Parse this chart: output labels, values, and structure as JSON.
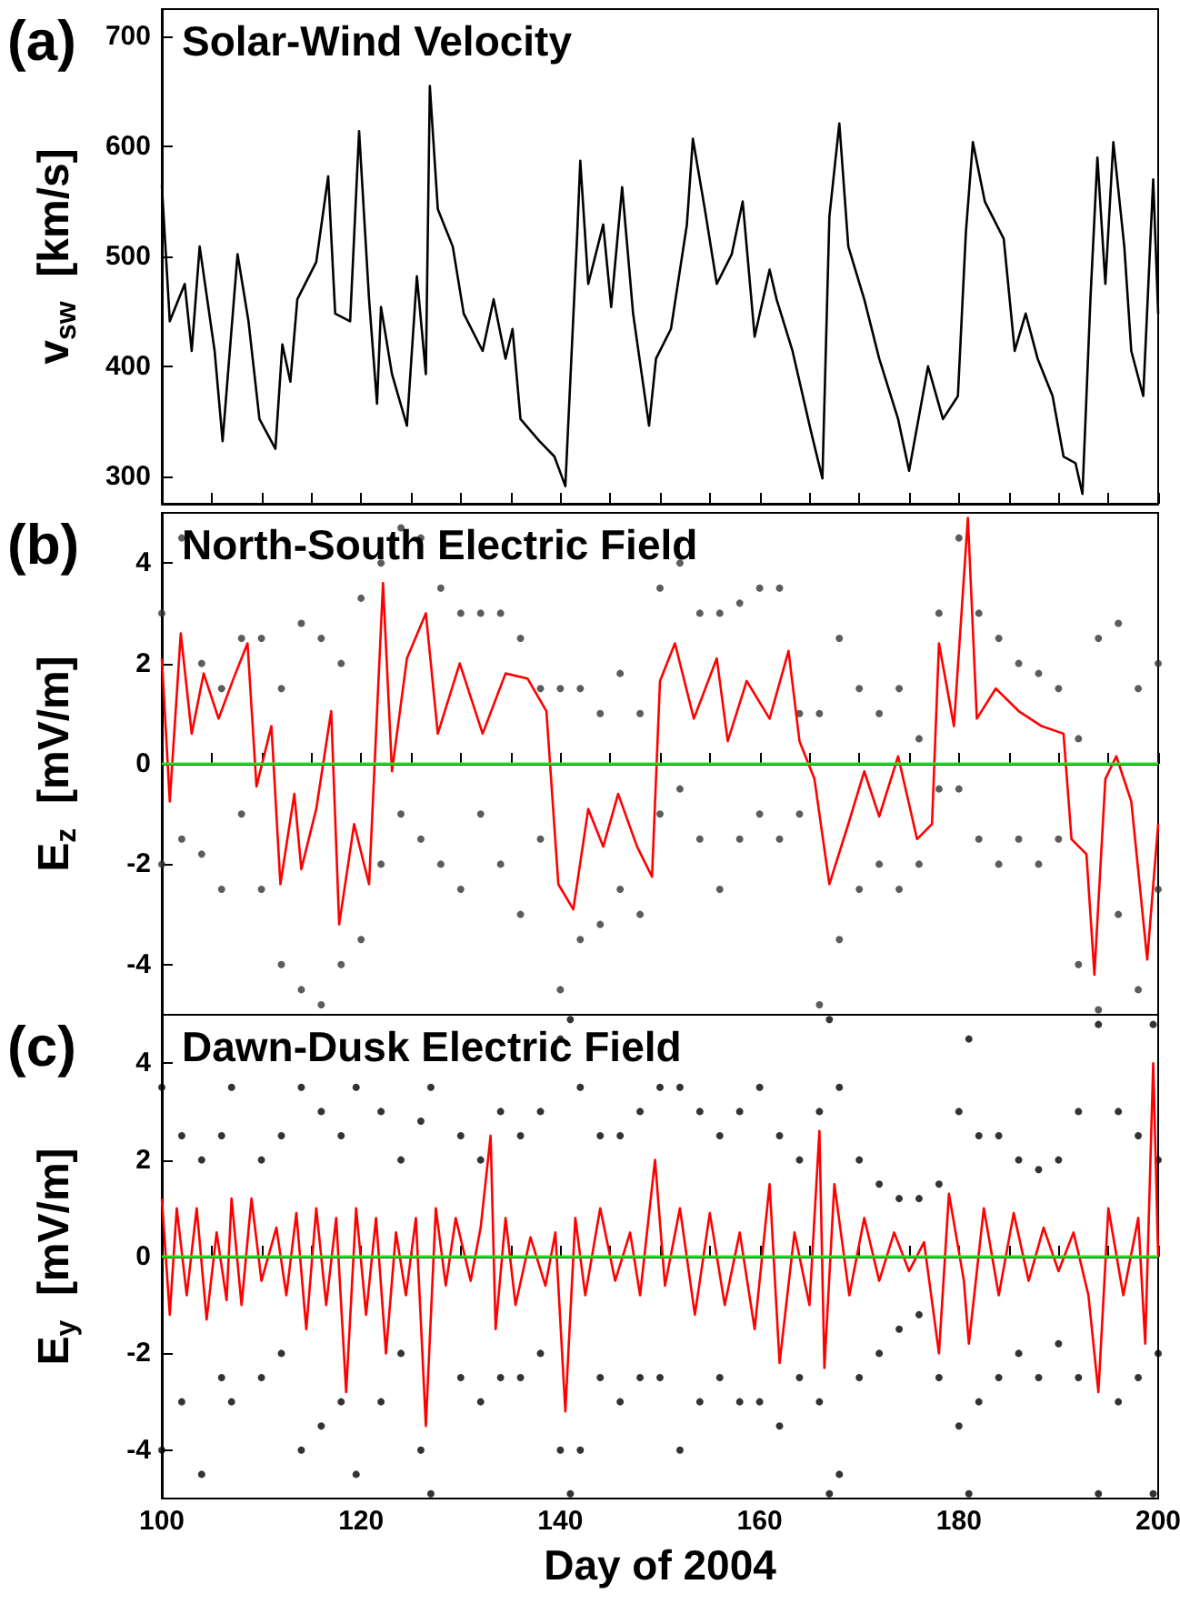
{
  "chart_data": [
    {
      "type": "line",
      "title": "Solar-Wind Velocity",
      "ylabel": "v$_{sw}$  [km/s]",
      "annotations": [
        "(a)"
      ],
      "tick_labels": "y",
      "xlim": [
        100,
        200
      ],
      "xticks": [
        100,
        {
          "value": 105,
          "label": null
        },
        {
          "value": 110,
          "label": null
        },
        {
          "value": 115,
          "label": null
        },
        120,
        {
          "value": 125,
          "label": null
        },
        {
          "value": 130,
          "label": null
        },
        {
          "value": 135,
          "label": null
        },
        140,
        {
          "value": 145,
          "label": null
        },
        {
          "value": 150,
          "label": null
        },
        {
          "value": 155,
          "label": null
        },
        160,
        {
          "value": 165,
          "label": null
        },
        {
          "value": 170,
          "label": null
        },
        {
          "value": 175,
          "label": null
        },
        180,
        {
          "value": 185,
          "label": null
        },
        {
          "value": 190,
          "label": null
        },
        {
          "value": 195,
          "label": null
        },
        200
      ],
      "ylim": [
        275,
        725
      ],
      "yticks": [
        300,
        400,
        500,
        600,
        700
      ],
      "series": [
        {
          "color": "#000000",
          "marker": "none",
          "x": [
            100,
            100.8,
            102.3,
            103,
            103.8,
            105.3,
            106.1,
            107.6,
            108.7,
            109.8,
            111.4,
            112.1,
            112.9,
            113.6,
            115.5,
            116.7,
            117.4,
            118.9,
            119.8,
            120.8,
            121.6,
            122,
            123.1,
            124.6,
            125.6,
            126.5,
            126.9,
            127.7,
            129.2,
            130.3,
            132.2,
            133.3,
            134.5,
            135.2,
            136,
            137.9,
            139.4,
            140.5,
            141.7,
            142,
            142.8,
            144.3,
            145.1,
            146.2,
            147.3,
            148.9,
            149.6,
            151.1,
            152.7,
            153.3,
            154.5,
            155.7,
            157.2,
            158.3,
            159.5,
            161,
            161.7,
            163.3,
            165.2,
            166.3,
            167,
            168,
            168.9,
            170.5,
            172,
            173.9,
            175,
            176.9,
            178.4,
            179.9,
            180.7,
            181.4,
            182.6,
            184.5,
            185.6,
            186.7,
            187.9,
            189.4,
            190.5,
            191.7,
            192.4,
            193.2,
            193.9,
            194.7,
            195.5,
            196.6,
            197.3,
            198.5,
            199.5,
            200
          ],
          "values": [
            565,
            441,
            475,
            414,
            509,
            414,
            332,
            502,
            441,
            352,
            325,
            420,
            386,
            461,
            495,
            573,
            448,
            441,
            614,
            461,
            366,
            454,
            393,
            346,
            482,
            393,
            655,
            543,
            509,
            448,
            414,
            461,
            407,
            434,
            352,
            332,
            318,
            291,
            522,
            587,
            475,
            529,
            454,
            563,
            448,
            346,
            407,
            434,
            529,
            607,
            543,
            475,
            502,
            550,
            427,
            488,
            461,
            414,
            339,
            298,
            536,
            621,
            509,
            461,
            407,
            352,
            305,
            400,
            352,
            373,
            522,
            604,
            550,
            516,
            414,
            448,
            407,
            373,
            318,
            312,
            284,
            461,
            590,
            475,
            604,
            509,
            414,
            373,
            570,
            448
          ]
        }
      ]
    },
    {
      "type": "line",
      "title": "North-South Electric Field",
      "ylabel": "E$_{z}$  [mV/m]",
      "annotations": [
        "(b)"
      ],
      "tick_labels": "y",
      "xlim": [
        100,
        200
      ],
      "xticks": [
        100,
        {
          "value": 105,
          "label": null
        },
        {
          "value": 110,
          "label": null
        },
        {
          "value": 115,
          "label": null
        },
        120,
        {
          "value": 125,
          "label": null
        },
        {
          "value": 130,
          "label": null
        },
        {
          "value": 135,
          "label": null
        },
        140,
        {
          "value": 145,
          "label": null
        },
        {
          "value": 150,
          "label": null
        },
        {
          "value": 155,
          "label": null
        },
        160,
        {
          "value": 165,
          "label": null
        },
        {
          "value": 170,
          "label": null
        },
        {
          "value": 175,
          "label": null
        },
        180,
        {
          "value": 185,
          "label": null
        },
        {
          "value": 190,
          "label": null
        },
        {
          "value": 195,
          "label": null
        },
        200
      ],
      "ylim": [
        -5,
        5
      ],
      "yticks": [
        -4,
        -2,
        0,
        2,
        4
      ],
      "ref_lines": [
        {
          "axis": "y",
          "value": 0,
          "color": "#22dd22"
        }
      ],
      "series": [
        {
          "type": "scatter",
          "color": "#333333",
          "marker": "circle",
          "x": [
            100,
            100,
            102,
            102,
            104,
            104,
            106,
            106,
            108,
            108,
            110,
            110,
            112,
            112,
            114,
            114,
            116,
            116,
            118,
            118,
            120,
            120,
            122,
            122,
            124,
            124,
            126,
            126,
            128,
            128,
            130,
            130,
            132,
            132,
            134,
            134,
            136,
            136,
            138,
            138,
            140,
            140,
            142,
            142,
            144,
            144,
            146,
            146,
            148,
            148,
            150,
            150,
            152,
            152,
            154,
            154,
            156,
            156,
            158,
            158,
            160,
            160,
            162,
            162,
            164,
            164,
            166,
            166,
            168,
            168,
            170,
            170,
            172,
            172,
            174,
            174,
            176,
            176,
            178,
            178,
            180,
            180,
            182,
            182,
            184,
            184,
            186,
            186,
            188,
            188,
            190,
            190,
            192,
            192,
            194,
            194,
            196,
            196,
            198,
            198,
            200,
            200
          ],
          "values": [
            3,
            -2,
            4.5,
            -1.5,
            2,
            -1.8,
            1.5,
            -2.5,
            2.5,
            -1,
            2.5,
            -2.5,
            1.5,
            -4,
            2.8,
            -4.5,
            2.5,
            -4.8,
            2,
            -4,
            3.3,
            -3.5,
            4,
            -2,
            4.7,
            -1,
            4.5,
            -1.5,
            3.5,
            -2,
            3,
            -2.5,
            3,
            -1,
            3,
            -2,
            2.5,
            -3,
            1.5,
            -1.5,
            1.5,
            -4.5,
            1.5,
            -3.5,
            1,
            -3.2,
            1.8,
            -2.5,
            1,
            -3,
            3.5,
            -1,
            4,
            -0.5,
            3,
            -1.5,
            3,
            -2.5,
            3.2,
            -1.5,
            3.5,
            -1,
            3.5,
            -1.5,
            1,
            -1,
            1,
            -4.8,
            2.5,
            -3.5,
            1.5,
            -2.5,
            1,
            -2,
            1.5,
            -2.5,
            0.5,
            -2,
            3,
            -0.5,
            4.5,
            -0.5,
            3,
            -1.5,
            2.5,
            -2,
            2,
            -1.5,
            1.8,
            -2,
            1.5,
            -1.5,
            0.5,
            -4,
            2.5,
            -4.9,
            2.8,
            -3,
            1.5,
            -4.5,
            2,
            -2.5
          ]
        },
        {
          "color": "#ff0000",
          "marker": "none",
          "x": [
            100,
            100.8,
            101.9,
            103,
            104.2,
            105.7,
            107.2,
            108.6,
            109.5,
            111,
            111.9,
            113.3,
            114,
            115.5,
            117,
            117.8,
            119.3,
            120.8,
            122.2,
            123.1,
            124.6,
            126.5,
            127.7,
            129.9,
            132.2,
            134.5,
            136.7,
            138.6,
            139.8,
            141.3,
            142.8,
            144.3,
            145.8,
            147.7,
            149.2,
            150,
            151.5,
            153.4,
            155.7,
            156.8,
            158.7,
            161,
            162.9,
            164,
            165.5,
            167,
            168.9,
            170.5,
            172,
            173.9,
            175.8,
            177.3,
            178,
            179.5,
            180.9,
            181.8,
            183.7,
            186,
            188.3,
            190.5,
            191.3,
            192.8,
            193.6,
            194.7,
            195.8,
            197.3,
            198.9,
            200
          ],
          "values": [
            2.1,
            -0.75,
            2.6,
            0.6,
            1.8,
            0.9,
            1.7,
            2.4,
            -0.45,
            0.75,
            -2.4,
            -0.6,
            -2.1,
            -0.9,
            1.05,
            -3.2,
            -1.2,
            -2.4,
            3.6,
            -0.15,
            2.1,
            3.0,
            0.6,
            2.0,
            0.6,
            1.8,
            1.7,
            1.05,
            -2.4,
            -2.9,
            -0.9,
            -1.65,
            -0.6,
            -1.65,
            -2.25,
            1.65,
            2.4,
            0.9,
            2.1,
            0.45,
            1.65,
            0.9,
            2.25,
            0.45,
            -0.3,
            -2.4,
            -1.2,
            -0.15,
            -1.05,
            0.15,
            -1.5,
            -1.2,
            2.4,
            0.75,
            4.9,
            0.9,
            1.5,
            1.05,
            0.75,
            0.6,
            -1.5,
            -1.8,
            -4.2,
            -0.3,
            0.15,
            -0.75,
            -3.9,
            -1.2
          ]
        }
      ]
    },
    {
      "type": "line",
      "title": "Dawn-Dusk Electric Field",
      "xlabel": "Day of 2004",
      "ylabel": "E$_{y}$  [mV/m]",
      "annotations": [
        "(c)"
      ],
      "xlim": [
        100,
        200
      ],
      "xticks": [
        100,
        {
          "value": 105,
          "label": null
        },
        {
          "value": 110,
          "label": null
        },
        {
          "value": 115,
          "label": null
        },
        120,
        {
          "value": 125,
          "label": null
        },
        {
          "value": 130,
          "label": null
        },
        {
          "value": 135,
          "label": null
        },
        140,
        {
          "value": 145,
          "label": null
        },
        {
          "value": 150,
          "label": null
        },
        {
          "value": 155,
          "label": null
        },
        160,
        {
          "value": 165,
          "label": null
        },
        {
          "value": 170,
          "label": null
        },
        {
          "value": 175,
          "label": null
        },
        180,
        {
          "value": 185,
          "label": null
        },
        {
          "value": 190,
          "label": null
        },
        {
          "value": 195,
          "label": null
        },
        200
      ],
      "ylim": [
        -5,
        5
      ],
      "yticks": [
        -4,
        -2,
        0,
        2,
        4
      ],
      "ref_lines": [
        {
          "axis": "y",
          "value": 0,
          "color": "#22dd22"
        }
      ],
      "series": [
        {
          "type": "scatter",
          "color": "#000000",
          "marker": "circle",
          "x": [
            100,
            100,
            102,
            102,
            104,
            104,
            106,
            106,
            107,
            107,
            110,
            110,
            112,
            112,
            114,
            114,
            116,
            116,
            118,
            118,
            119.5,
            119.5,
            122,
            122,
            124,
            124,
            126,
            126,
            127,
            127,
            130,
            130,
            132,
            132,
            134,
            134,
            136,
            136,
            138,
            138,
            140,
            140,
            141,
            141,
            142,
            142,
            144,
            144,
            146,
            146,
            148,
            148,
            150,
            150,
            152,
            152,
            154,
            154,
            156,
            156,
            158,
            158,
            160,
            160,
            162,
            162,
            164,
            164,
            166,
            166,
            167,
            167,
            168,
            168,
            170,
            170,
            172,
            172,
            174,
            174,
            176,
            176,
            178,
            178,
            180,
            180,
            181,
            181,
            182,
            182,
            184,
            184,
            186,
            186,
            188,
            188,
            190,
            190,
            192,
            192,
            194,
            194,
            196,
            196,
            198,
            198,
            199.5,
            199.5,
            200,
            200
          ],
          "values": [
            3.5,
            -4,
            2.5,
            -3,
            2,
            -4.5,
            2.5,
            -2.5,
            3.5,
            -3,
            2,
            -2.5,
            2.5,
            -2,
            3.5,
            -4,
            3,
            -3.5,
            2.5,
            -3,
            3.5,
            -4.5,
            3,
            -3,
            2,
            -2,
            2.8,
            -4,
            3.5,
            -4.9,
            2.5,
            -2.5,
            2,
            -3,
            3,
            -2.5,
            2.5,
            -2.5,
            3,
            -2,
            4.5,
            -4,
            4.9,
            -4.9,
            3.5,
            -4,
            2.5,
            -2.5,
            2.5,
            -3,
            3,
            -2.5,
            3.5,
            -2.5,
            3.5,
            -4,
            3,
            -3,
            2.5,
            -2.5,
            3,
            -3,
            3.5,
            -3,
            2.5,
            -3.5,
            2,
            -2.5,
            3,
            -3,
            4.9,
            -4.9,
            3.5,
            -4.5,
            2,
            -2.5,
            1.5,
            -2,
            1.2,
            -1.5,
            1.2,
            -1.2,
            1.5,
            -2.5,
            3,
            -3.5,
            4.5,
            -4.9,
            2.5,
            -3,
            2.5,
            -2.5,
            2,
            -2,
            1.8,
            -2.5,
            2,
            -1.8,
            3,
            -2.5,
            4.8,
            -4.9,
            3,
            -3,
            2.5,
            -2.5,
            4.8,
            -4.9,
            2,
            -2
          ]
        },
        {
          "color": "#ff0000",
          "marker": "none",
          "x": [
            100,
            100.8,
            101.5,
            102.5,
            103.5,
            104.5,
            105.5,
            106.5,
            107,
            108,
            109,
            110,
            111.5,
            112.5,
            113.5,
            114.5,
            115.5,
            116.5,
            117.5,
            118.5,
            119.5,
            120.5,
            121.5,
            122.5,
            123.5,
            124.5,
            125.5,
            126.5,
            127.5,
            128.5,
            129.5,
            131,
            132,
            133,
            133.5,
            134.5,
            135.5,
            137,
            138.5,
            139.5,
            140.5,
            141.5,
            142.5,
            144,
            145.5,
            147,
            148,
            149.5,
            150.5,
            152,
            153.5,
            155,
            156.5,
            158,
            159.5,
            161,
            162,
            163.5,
            165,
            166,
            166.5,
            167.5,
            169,
            170.5,
            172,
            173.5,
            175,
            176.5,
            178,
            179,
            180.5,
            181,
            182.5,
            184,
            185.5,
            187,
            188.5,
            190,
            191.5,
            193,
            194,
            195,
            196.5,
            198,
            198.7,
            199.5,
            200
          ],
          "values": [
            1.2,
            -1.2,
            1,
            -0.8,
            1,
            -1.3,
            0.5,
            -0.9,
            1.2,
            -1,
            1.2,
            -0.5,
            0.6,
            -0.8,
            0.9,
            -1.5,
            1,
            -1,
            0.8,
            -2.8,
            1,
            -1.2,
            0.8,
            -2,
            0.5,
            -0.8,
            0.8,
            -3.5,
            1,
            -0.6,
            0.8,
            -0.5,
            0.6,
            2.5,
            -1.5,
            0.8,
            -1,
            0.4,
            -0.6,
            0.5,
            -3.2,
            0.8,
            -0.8,
            1,
            -0.5,
            0.5,
            -0.8,
            2,
            -0.6,
            1,
            -1.2,
            0.9,
            -1,
            0.5,
            -1.5,
            1.5,
            -2.2,
            0.5,
            -1,
            2.6,
            -2.3,
            1.5,
            -0.8,
            0.8,
            -0.5,
            0.5,
            -0.3,
            0.3,
            -2,
            1.3,
            -0.5,
            -1.8,
            1,
            -0.8,
            0.9,
            -0.5,
            0.6,
            -0.3,
            0.5,
            -0.8,
            -2.8,
            1,
            -0.8,
            0.8,
            -1.8,
            4,
            0
          ]
        }
      ]
    }
  ]
}
